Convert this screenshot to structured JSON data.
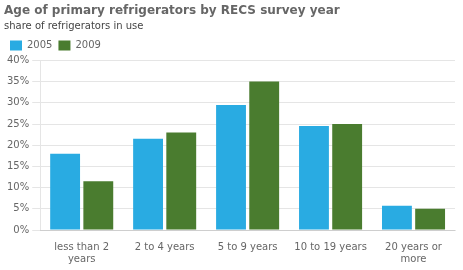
{
  "chart_data": {
    "type": "bar",
    "title": "Age of primary refrigerators by RECS survey year",
    "subtitle": "share of refrigerators in use",
    "categories": [
      "less than 2\nyears",
      "2 to 4 years",
      "5 to 9 years",
      "10 to 19 years",
      "20 years or\nmore"
    ],
    "series": [
      {
        "name": "2005",
        "color": "#29abe2",
        "values": [
          18,
          21.5,
          29.5,
          24.5,
          5.7
        ]
      },
      {
        "name": "2009",
        "color": "#4a7c2f",
        "values": [
          11.5,
          23,
          35,
          25,
          5.0
        ]
      }
    ],
    "ylim": [
      0,
      40
    ],
    "yticks": [
      {
        "value": 0,
        "label": "0%"
      },
      {
        "value": 5,
        "label": "5%"
      },
      {
        "value": 10,
        "label": "10%"
      },
      {
        "value": 15,
        "label": "15%"
      },
      {
        "value": 20,
        "label": "20%"
      },
      {
        "value": 25,
        "label": "25%"
      },
      {
        "value": 30,
        "label": "30%"
      },
      {
        "value": 35,
        "label": "35%"
      },
      {
        "value": 40,
        "label": "40%"
      }
    ],
    "grid": true,
    "legend": "upper left"
  }
}
